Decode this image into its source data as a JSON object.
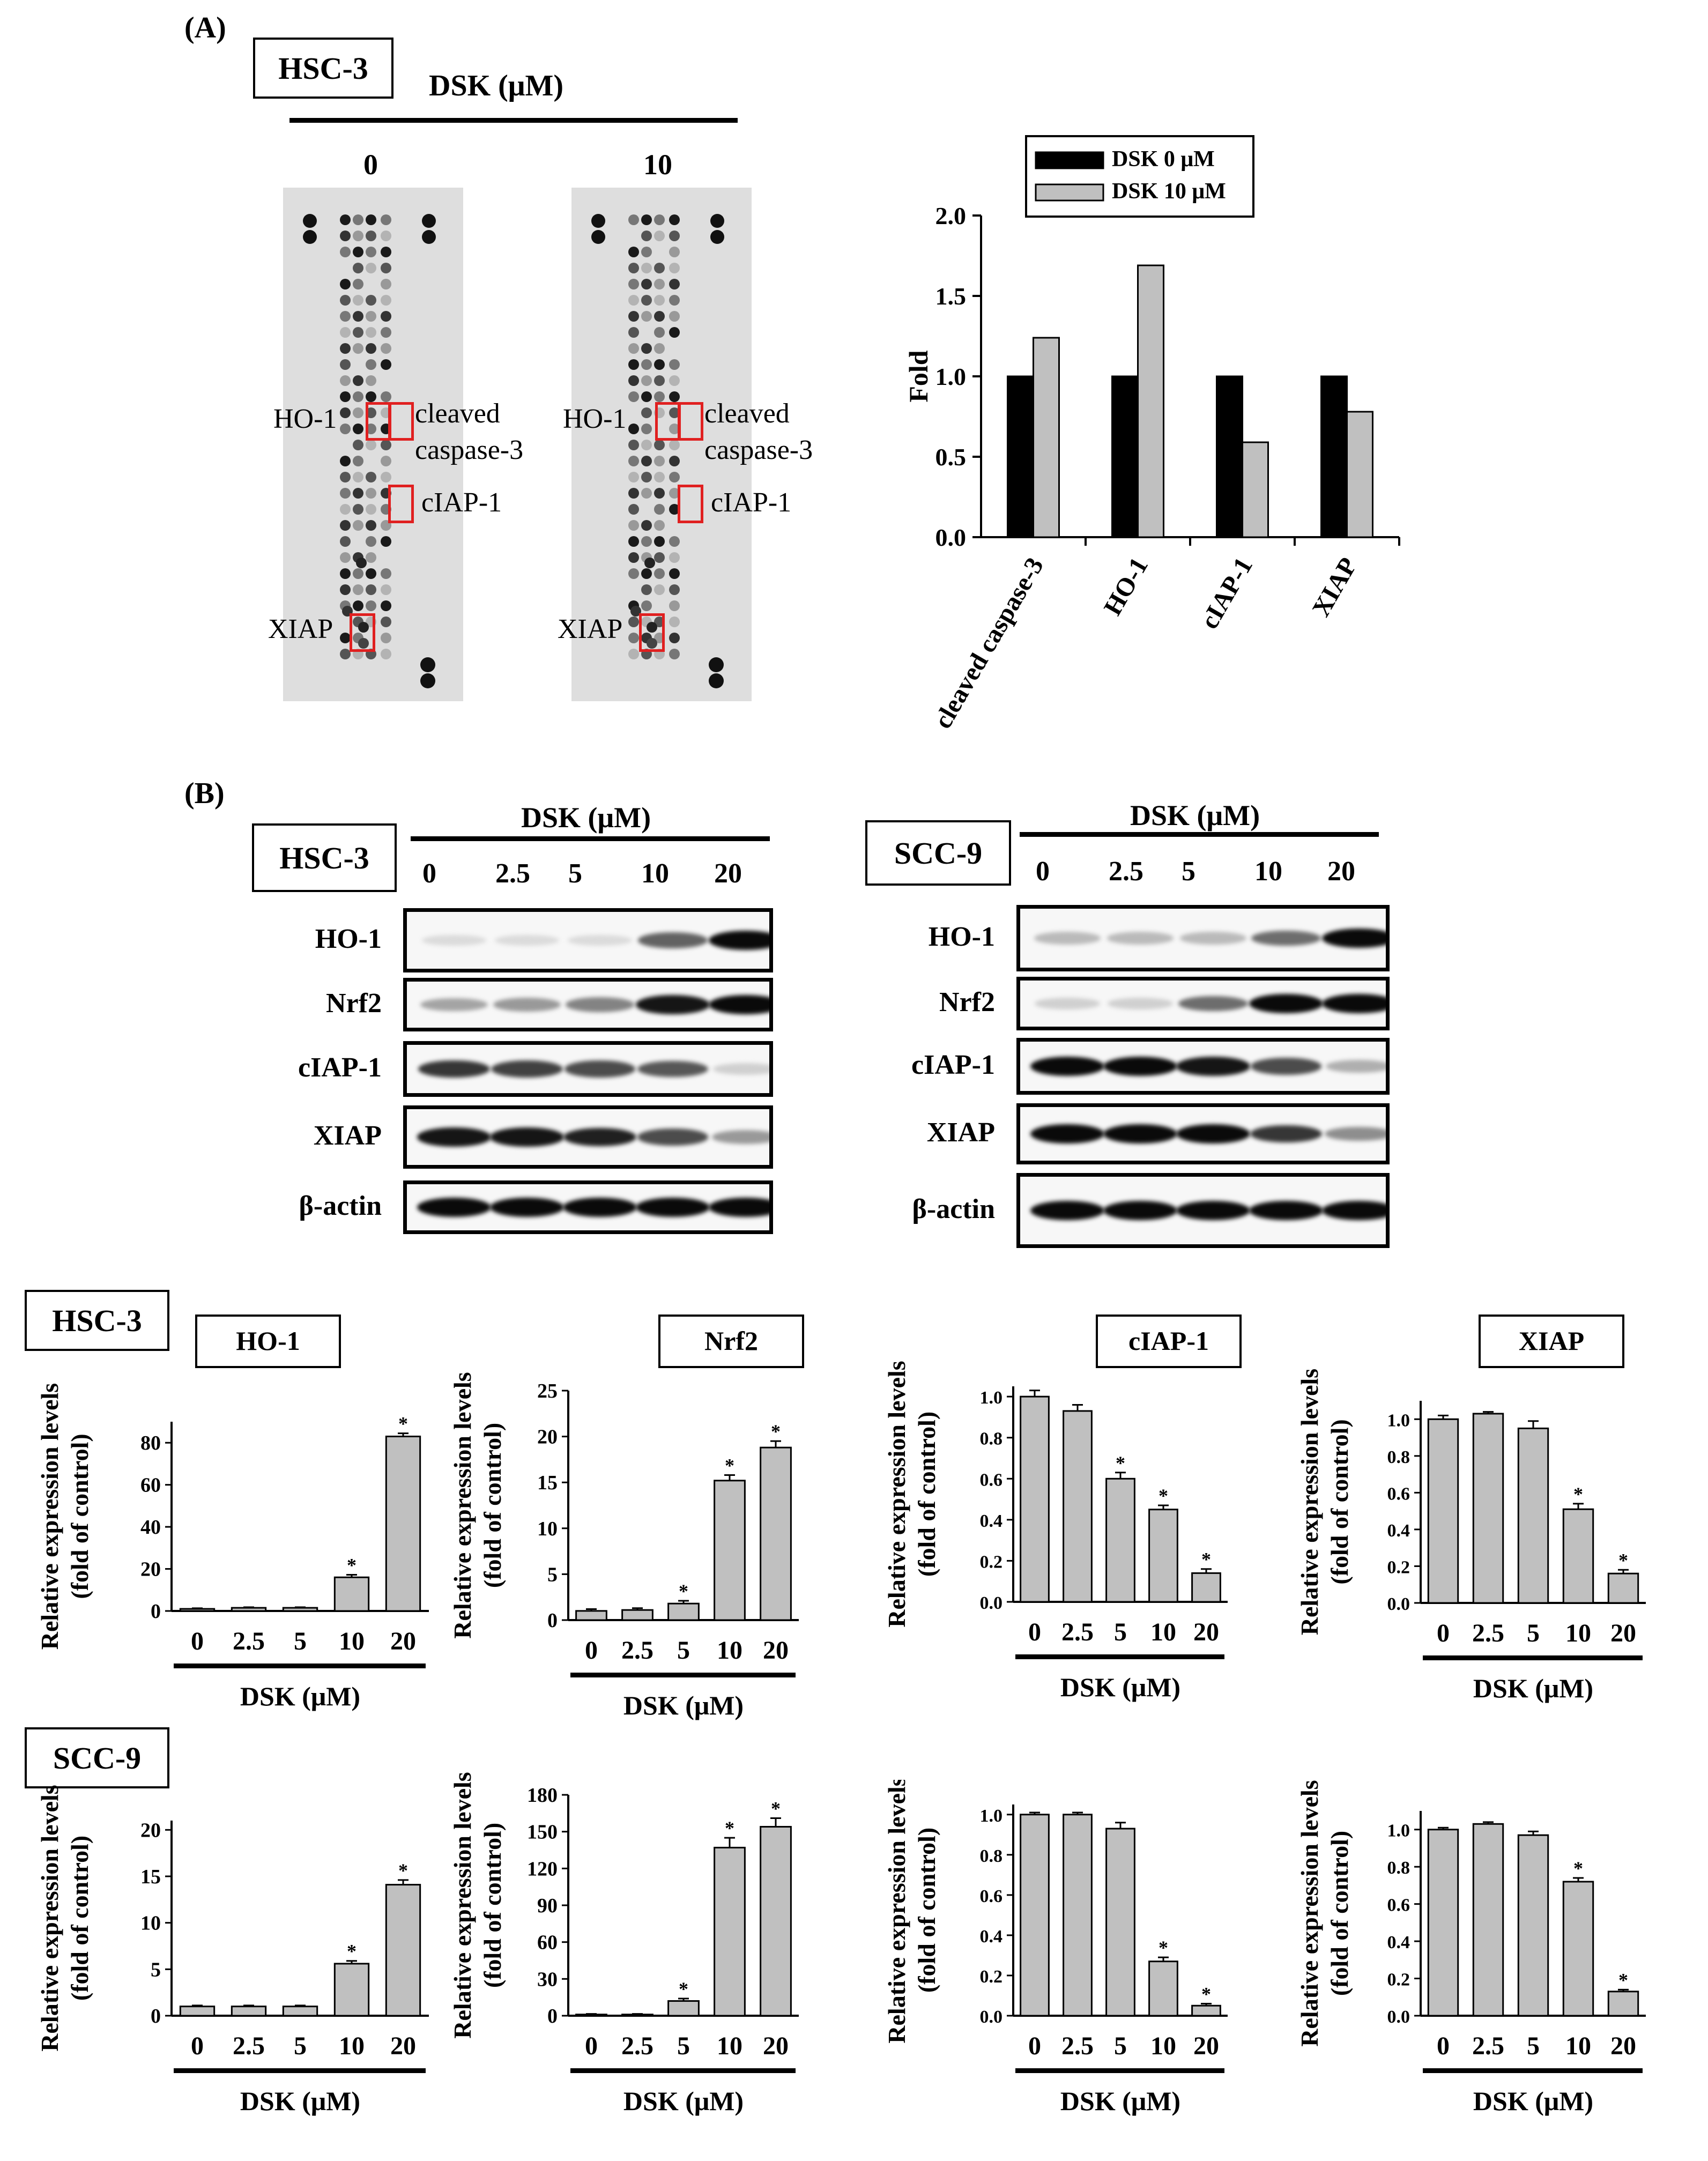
{
  "panel_A": {
    "label": "(A)",
    "cell_line": "HSC-3",
    "treatment_label": "DSK (μM)",
    "doses": [
      "0",
      "10"
    ],
    "array_labels": {
      "ho1": "HO-1",
      "cleaved_1": "cleaved",
      "cleaved_2": "caspase-3",
      "ciap": "cIAP-1",
      "xiap": "XIAP"
    }
  },
  "panel_B": {
    "label": "(B)",
    "left": {
      "cell_line": "HSC-3",
      "treatment_label": "DSK (μM)",
      "doses": [
        "0",
        "2.5",
        "5",
        "10",
        "20"
      ],
      "proteins": [
        "HO-1",
        "Nrf2",
        "cIAP-1",
        "XIAP",
        "β-actin"
      ]
    },
    "right": {
      "cell_line": "SCC-9",
      "treatment_label": "DSK (μM)",
      "doses": [
        "0",
        "2.5",
        "5",
        "10",
        "20"
      ],
      "proteins": [
        "HO-1",
        "Nrf2",
        "cIAP-1",
        "XIAP",
        "β-actin"
      ]
    }
  },
  "row_labels": {
    "hsc3": "HSC-3",
    "scc9": "SCC-9"
  },
  "chart_data": [
    {
      "type": "bar",
      "panel": "A",
      "categories": [
        "cleaved caspase-3",
        "HO-1",
        "cIAP-1",
        "XIAP"
      ],
      "series": [
        {
          "name": "DSK 0 μM",
          "values": [
            1.0,
            1.0,
            1.0,
            1.0
          ],
          "color": "#000000"
        },
        {
          "name": "DSK 10 μM",
          "values": [
            1.24,
            1.69,
            0.59,
            0.78
          ],
          "color": "#c0c0c0"
        }
      ],
      "ylabel": "Fold",
      "ylim": [
        0,
        2.0
      ],
      "yticks": [
        "0.0",
        "0.5",
        "1.0",
        "1.5",
        "2.0"
      ],
      "legend": "top"
    },
    {
      "type": "bar",
      "title": "HO-1",
      "cell_line": "HSC-3",
      "categories": [
        "0",
        "2.5",
        "5",
        "10",
        "20"
      ],
      "values": [
        1,
        1.5,
        1.5,
        16,
        83
      ],
      "errors": [
        0.3,
        0.3,
        0.3,
        1.2,
        1.5
      ],
      "significant": [
        false,
        false,
        false,
        true,
        true
      ],
      "ylabel_1": "Relative expression levels",
      "ylabel_2": "(fold of control)",
      "xlabel": "DSK (μM)",
      "ylim": [
        0,
        90
      ],
      "yticks": [
        "0",
        "20",
        "40",
        "60",
        "80"
      ],
      "ytick_values": [
        0,
        20,
        40,
        60,
        80
      ],
      "significance_mark": "*",
      "boxed_title": true
    },
    {
      "type": "bar",
      "title": "Nrf2",
      "cell_line": "HSC-3",
      "categories": [
        "0",
        "2.5",
        "5",
        "10",
        "20"
      ],
      "values": [
        1,
        1.1,
        1.8,
        15.2,
        18.8
      ],
      "errors": [
        0.2,
        0.2,
        0.3,
        0.6,
        0.7
      ],
      "significant": [
        false,
        false,
        true,
        true,
        true
      ],
      "ylabel_1": "Relative expression levels",
      "ylabel_2": "(fold of control)",
      "xlabel": "DSK (μM)",
      "ylim": [
        0,
        25
      ],
      "yticks": [
        "0",
        "5",
        "10",
        "15",
        "20",
        "25"
      ],
      "ytick_values": [
        0,
        5,
        10,
        15,
        20,
        25
      ],
      "significance_mark": "*",
      "boxed_title": true
    },
    {
      "type": "bar",
      "title": "cIAP-1",
      "cell_line": "HSC-3",
      "categories": [
        "0",
        "2.5",
        "5",
        "10",
        "20"
      ],
      "values": [
        1.0,
        0.93,
        0.6,
        0.45,
        0.14
      ],
      "errors": [
        0.03,
        0.03,
        0.03,
        0.02,
        0.02
      ],
      "significant": [
        false,
        false,
        true,
        true,
        true
      ],
      "ylabel_1": "Relative expression levels",
      "ylabel_2": "(fold of control)",
      "xlabel": "DSK (μM)",
      "ylim": [
        0,
        1.05
      ],
      "yticks": [
        "0.0",
        "0.2",
        "0.4",
        "0.6",
        "0.8",
        "1.0"
      ],
      "ytick_values": [
        0,
        0.2,
        0.4,
        0.6,
        0.8,
        1.0
      ],
      "significance_mark": "*",
      "boxed_title": true
    },
    {
      "type": "bar",
      "title": "XIAP",
      "cell_line": "HSC-3",
      "categories": [
        "0",
        "2.5",
        "5",
        "10",
        "20"
      ],
      "values": [
        1.0,
        1.03,
        0.95,
        0.51,
        0.16
      ],
      "errors": [
        0.02,
        0.01,
        0.04,
        0.03,
        0.02
      ],
      "significant": [
        false,
        false,
        false,
        true,
        true
      ],
      "ylabel_1": "Relative expression levels",
      "ylabel_2": "(fold of control)",
      "xlabel": "DSK (μM)",
      "ylim": [
        0,
        1.1
      ],
      "yticks": [
        "0.0",
        "0.2",
        "0.4",
        "0.6",
        "0.8",
        "1.0"
      ],
      "ytick_values": [
        0,
        0.2,
        0.4,
        0.6,
        0.8,
        1.0
      ],
      "significance_mark": "*",
      "boxed_title": true
    },
    {
      "type": "bar",
      "title": "",
      "cell_line": "SCC-9",
      "categories": [
        "0",
        "2.5",
        "5",
        "10",
        "20"
      ],
      "values": [
        1,
        1,
        1,
        5.6,
        14.1
      ],
      "errors": [
        0.1,
        0.1,
        0.1,
        0.3,
        0.5
      ],
      "significant": [
        false,
        false,
        false,
        true,
        true
      ],
      "ylabel_1": "Relative expression levels",
      "ylabel_2": "(fold of control)",
      "xlabel": "DSK (μM)",
      "ylim": [
        0,
        21
      ],
      "yticks": [
        "0",
        "5",
        "10",
        "15",
        "20"
      ],
      "ytick_values": [
        0,
        5,
        10,
        15,
        20
      ],
      "significance_mark": "*",
      "boxed_title": false
    },
    {
      "type": "bar",
      "title": "",
      "cell_line": "SCC-9",
      "categories": [
        "0",
        "2.5",
        "5",
        "10",
        "20"
      ],
      "values": [
        1,
        1,
        12,
        137,
        154
      ],
      "errors": [
        0.5,
        0.5,
        2,
        8,
        7
      ],
      "significant": [
        false,
        false,
        true,
        true,
        true
      ],
      "ylabel_1": "Relative expression levels",
      "ylabel_2": "(fold of control)",
      "xlabel": "DSK (μM)",
      "ylim": [
        0,
        180
      ],
      "yticks": [
        "0",
        "30",
        "60",
        "90",
        "120",
        "150",
        "180"
      ],
      "ytick_values": [
        0,
        30,
        60,
        90,
        120,
        150,
        180
      ],
      "significance_mark": "*",
      "boxed_title": false
    },
    {
      "type": "bar",
      "title": "",
      "cell_line": "SCC-9",
      "categories": [
        "0",
        "2.5",
        "5",
        "10",
        "20"
      ],
      "values": [
        1.0,
        1.0,
        0.93,
        0.27,
        0.05
      ],
      "errors": [
        0.01,
        0.01,
        0.03,
        0.02,
        0.01
      ],
      "significant": [
        false,
        false,
        false,
        true,
        true
      ],
      "ylabel_1": "Relative expression levels",
      "ylabel_2": "(fold of control)",
      "xlabel": "DSK (μM)",
      "ylim": [
        0,
        1.05
      ],
      "yticks": [
        "0.0",
        "0.2",
        "0.4",
        "0.6",
        "0.8",
        "1.0"
      ],
      "ytick_values": [
        0,
        0.2,
        0.4,
        0.6,
        0.8,
        1.0
      ],
      "significance_mark": "*",
      "boxed_title": false
    },
    {
      "type": "bar",
      "title": "",
      "cell_line": "SCC-9",
      "categories": [
        "0",
        "2.5",
        "5",
        "10",
        "20"
      ],
      "values": [
        1.0,
        1.03,
        0.97,
        0.72,
        0.13
      ],
      "errors": [
        0.01,
        0.01,
        0.02,
        0.02,
        0.01
      ],
      "significant": [
        false,
        false,
        false,
        true,
        true
      ],
      "ylabel_1": "Relative expression levels",
      "ylabel_2": "(fold of control)",
      "xlabel": "DSK (μM)",
      "ylim": [
        0,
        1.1
      ],
      "yticks": [
        "0.0",
        "0.2",
        "0.4",
        "0.6",
        "0.8",
        "1.0"
      ],
      "ytick_values": [
        0,
        0.2,
        0.4,
        0.6,
        0.8,
        1.0
      ],
      "significance_mark": "*",
      "boxed_title": false
    }
  ]
}
